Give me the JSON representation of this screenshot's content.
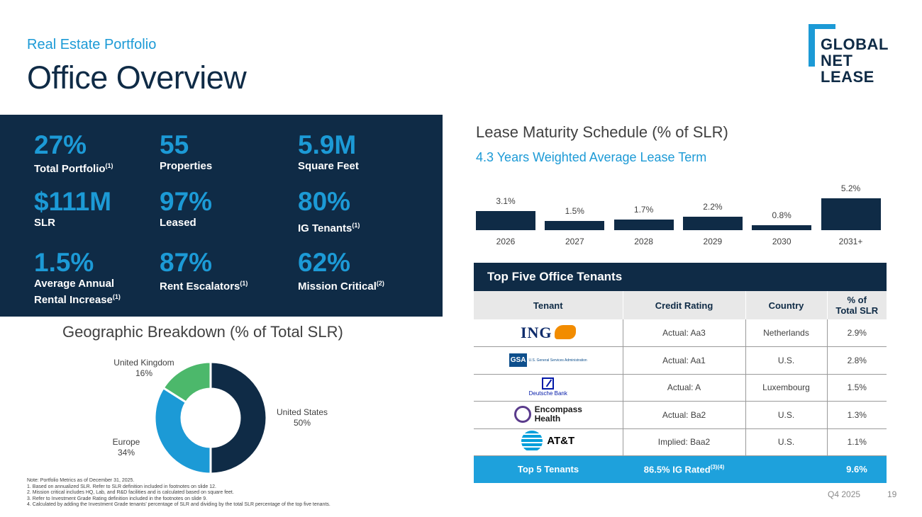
{
  "header": {
    "kicker": "Real Estate Portfolio",
    "title": "Office Overview"
  },
  "logo": {
    "line1": "GLOBAL",
    "line2": "NET",
    "line3": "LEASE"
  },
  "metrics": [
    {
      "value": "27%",
      "label": "Total Portfolio",
      "sup": "(1)"
    },
    {
      "value": "55",
      "label": "Properties",
      "sup": ""
    },
    {
      "value": "5.9M",
      "label": "Square Feet",
      "sup": ""
    },
    {
      "value": "$111M",
      "label": "SLR",
      "sup": ""
    },
    {
      "value": "97%",
      "label": "Leased",
      "sup": ""
    },
    {
      "value": "80%",
      "label": "IG Tenants",
      "sup": "(1)"
    },
    {
      "value": "1.5%",
      "label1": "Average Annual",
      "label": "Rental Increase",
      "sup": "(1)"
    },
    {
      "value": "87%",
      "label": "Rent Escalators",
      "sup": "(1)"
    },
    {
      "value": "62%",
      "label": "Mission Critical",
      "sup": "(2)"
    }
  ],
  "lease_chart": {
    "title": "Lease Maturity Schedule (% of SLR)",
    "subtitle": "4.3 Years Weighted Average Lease Term"
  },
  "geo_chart": {
    "title": "Geographic Breakdown (% of Total SLR)"
  },
  "chart_data": [
    {
      "type": "bar",
      "title": "Lease Maturity Schedule (% of SLR)",
      "categories": [
        "2026",
        "2027",
        "2028",
        "2029",
        "2030",
        "2031+"
      ],
      "values": [
        3.1,
        1.5,
        1.7,
        2.2,
        0.8,
        5.2
      ],
      "value_labels": [
        "3.1%",
        "1.5%",
        "1.7%",
        "2.2%",
        "0.8%",
        "5.2%"
      ],
      "ylim": [
        0,
        5.2
      ],
      "color": "#0f2b46"
    },
    {
      "type": "pie",
      "title": "Geographic Breakdown (% of Total SLR)",
      "donut": true,
      "slices": [
        {
          "name": "United States",
          "value": 50,
          "label": "50%",
          "color": "#0f2b46"
        },
        {
          "name": "Europe",
          "value": 34,
          "label": "34%",
          "color": "#1c9ad6"
        },
        {
          "name": "United Kingdom",
          "value": 16,
          "label": "16%",
          "color": "#4cb86b"
        }
      ]
    }
  ],
  "tenants_table": {
    "title": "Top Five Office Tenants",
    "headers": {
      "tenant": "Tenant",
      "credit": "Credit Rating",
      "country": "Country",
      "pct1": "% of",
      "pct2": "Total SLR"
    },
    "rows": [
      {
        "logo_text": "ING",
        "credit": "Actual: Aa3",
        "country": "Netherlands",
        "pct": "2.9%"
      },
      {
        "logo_text": "GSA",
        "logo_sub": "U.S. General Services Administration",
        "credit": "Actual: Aa1",
        "country": "U.S.",
        "pct": "2.8%"
      },
      {
        "logo_text": "Deutsche Bank",
        "credit": "Actual: A",
        "country": "Luxembourg",
        "pct": "1.5%"
      },
      {
        "logo_text": "Encompass",
        "logo_sub": "Health",
        "credit": "Actual: Ba2",
        "country": "U.S.",
        "pct": "1.3%"
      },
      {
        "logo_text": "AT&T",
        "credit": "Implied: Baa2",
        "country": "U.S.",
        "pct": "1.1%"
      }
    ],
    "total": {
      "label": "Top 5 Tenants",
      "credit": "86.5% IG Rated",
      "credit_sup": "(3)(4)",
      "country": "",
      "pct": "9.6%"
    }
  },
  "notes": [
    "Note: Portfolio Metrics as of December 31, 2025.",
    "1.    Based on annualized SLR. Refer to SLR definition included in footnotes on slide 12.",
    "2.    Mission critical includes HQ, Lab, and R&D facilities and is calculated based on square feet.",
    "3.    Refer to Investment Grade Rating definition included in the footnotes on slide 9.",
    "4.    Calculated by adding the Investment Grade tenants' percentage of SLR and dividing by the total SLR percentage of the top five tenants."
  ],
  "footer": {
    "quarter": "Q4 2025",
    "page": "19"
  }
}
